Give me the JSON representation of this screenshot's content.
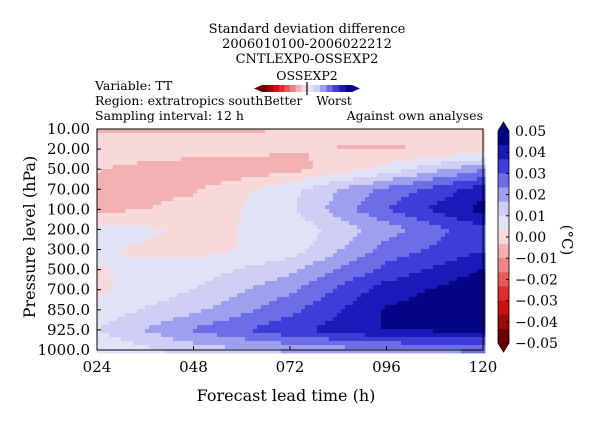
{
  "chart_data": {
    "type": "heatmap",
    "title": [
      "Standard deviation difference",
      "2006010100-2006022212",
      "CNTLEXP0-OSSEXP2"
    ],
    "info": [
      "Variable: TT",
      "Region: extratropics south",
      "Sampling interval: 12 h"
    ],
    "note": "Against own analyses",
    "xlabel": "Forecast lead time (h)",
    "ylabel": "Pressure level (hPa)",
    "x": [
      "024",
      "048",
      "072",
      "096",
      "120"
    ],
    "y": [
      "10.00",
      "20.00",
      "50.00",
      "70.00",
      "100.0",
      "200.0",
      "300.0",
      "500.0",
      "700.0",
      "850.0",
      "925.0",
      "1000.0"
    ],
    "legend": {
      "title": "OSSEXP2",
      "better": "Better",
      "worst": "Worst"
    },
    "colorbar": {
      "label": "(°C)",
      "ticks": [
        "0.05",
        "0.04",
        "0.03",
        "0.02",
        "0.01",
        "0.00",
        "−0.01",
        "−0.02",
        "−0.03",
        "−0.04",
        "−0.05"
      ],
      "range": [
        -0.05,
        0.05
      ],
      "colors": [
        "#050585",
        "#1a1ab8",
        "#3d3dd8",
        "#6d6de8",
        "#9f9ff0",
        "#cfcff6",
        "#e3e3f8",
        "#f8d8d8",
        "#f2b0b0",
        "#ec8585",
        "#e65a5a",
        "#e02c2c",
        "#cc0e0e",
        "#a00808",
        "#6a0000"
      ]
    },
    "values": [
      [
        -0.005,
        -0.005,
        -0.003,
        -0.001,
        0.001
      ],
      [
        0.003,
        0.002,
        -0.003,
        -0.004,
        -0.002
      ],
      [
        -0.003,
        -0.01,
        -0.006,
        0.006,
        0.023
      ],
      [
        -0.004,
        -0.004,
        0.008,
        0.025,
        0.04
      ],
      [
        -0.005,
        -0.002,
        0.009,
        0.03,
        0.046
      ],
      [
        0.007,
        0.002,
        0.005,
        0.02,
        0.035
      ],
      [
        0.004,
        0.001,
        0.006,
        0.026,
        0.036
      ],
      [
        0.003,
        0.006,
        0.015,
        0.032,
        0.044
      ],
      [
        0.002,
        0.01,
        0.022,
        0.04,
        0.048
      ],
      [
        0.006,
        0.015,
        0.028,
        0.044,
        0.048
      ],
      [
        0.01,
        0.024,
        0.035,
        0.044,
        0.045
      ],
      [
        0.004,
        0.013,
        0.018,
        0.022,
        0.025
      ]
    ]
  }
}
